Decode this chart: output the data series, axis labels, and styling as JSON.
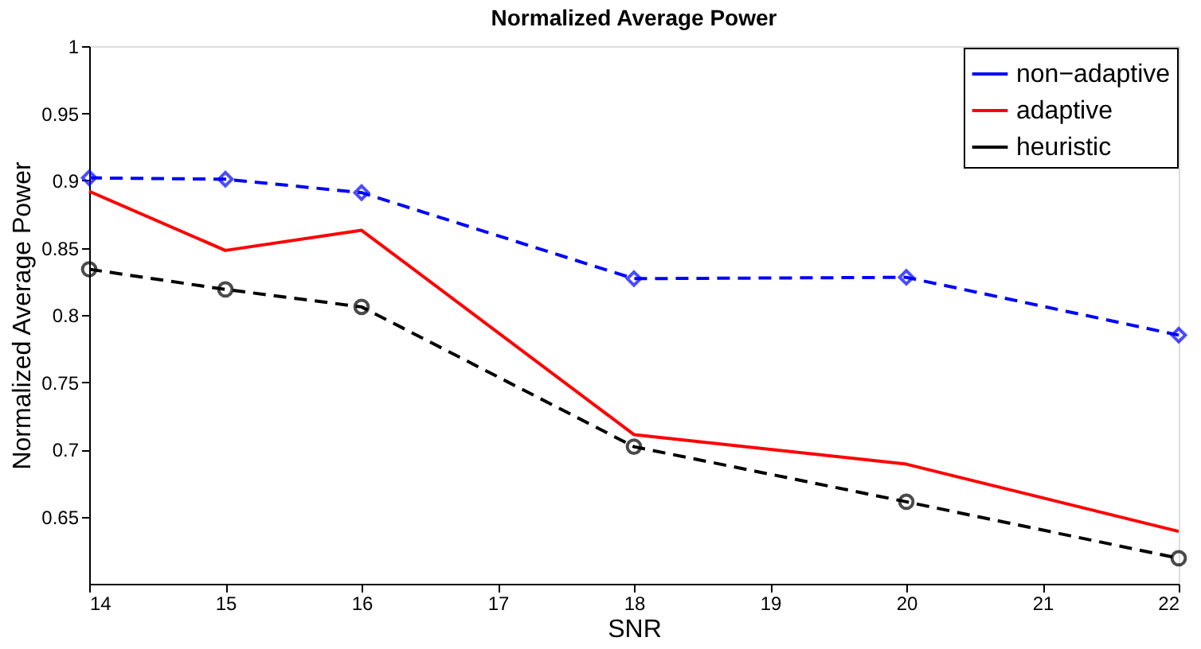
{
  "chart_data": {
    "type": "line",
    "title": "Normalized Average Power",
    "xlabel": "SNR",
    "ylabel": "Normalized Average Power",
    "x": [
      14,
      15,
      16,
      18,
      20,
      22
    ],
    "series": [
      {
        "name": "non−adaptive",
        "color": "#0000ff",
        "marker": "diamond",
        "line_style": "dashed",
        "values": [
          0.902,
          0.901,
          0.891,
          0.827,
          0.828,
          0.785
        ]
      },
      {
        "name": "adaptive",
        "color": "#ff0000",
        "marker": "none",
        "line_style": "solid",
        "values": [
          0.892,
          0.848,
          0.863,
          0.711,
          0.689,
          0.639
        ]
      },
      {
        "name": "heuristic",
        "color": "#000000",
        "marker": "circle",
        "line_style": "dashed",
        "values": [
          0.834,
          0.819,
          0.806,
          0.702,
          0.661,
          0.619
        ]
      }
    ],
    "xlim": [
      14,
      22
    ],
    "xticks": [
      14,
      15,
      16,
      17,
      18,
      19,
      20,
      21,
      22
    ],
    "ylim": [
      0.6,
      1
    ],
    "yticks": [
      0.65,
      0.7,
      0.75,
      0.8,
      0.85,
      0.9,
      0.95,
      1
    ],
    "grid": false,
    "legend": "top right"
  }
}
